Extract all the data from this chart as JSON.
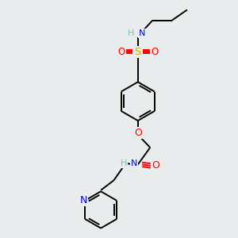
{
  "bg_color": "#e8ecec",
  "atom_colors": {
    "C": "#000000",
    "N": "#0000ff",
    "O": "#ff0000",
    "S": "#ccaa00",
    "H": "#7fbfbf",
    "bond": "#000000"
  },
  "font_size": 8.0,
  "line_width": 1.4,
  "figsize": [
    3.0,
    3.0
  ],
  "dpi": 100
}
